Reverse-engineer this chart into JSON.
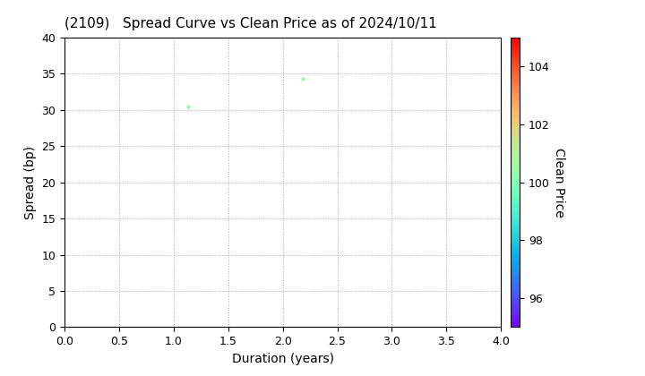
{
  "title": "(2109)   Spread Curve vs Clean Price as of 2024/10/11",
  "xlabel": "Duration (years)",
  "ylabel": "Spread (bp)",
  "colorbar_label": "Clean Price",
  "xlim": [
    0.0,
    4.0
  ],
  "ylim": [
    0,
    40
  ],
  "xticks": [
    0.0,
    0.5,
    1.0,
    1.5,
    2.0,
    2.5,
    3.0,
    3.5,
    4.0
  ],
  "yticks": [
    0,
    5,
    10,
    15,
    20,
    25,
    30,
    35,
    40
  ],
  "colorbar_min": 95,
  "colorbar_max": 105,
  "colorbar_ticks": [
    96,
    98,
    100,
    102,
    104
  ],
  "points": [
    {
      "duration": 1.13,
      "spread": 30.5,
      "clean_price": 100.2
    },
    {
      "duration": 2.18,
      "spread": 34.3,
      "clean_price": 100.3
    }
  ],
  "marker_size": 10,
  "grid_color": "#aaaaaa",
  "grid_style": "dotted",
  "background_color": "#ffffff",
  "title_fontsize": 11,
  "axis_fontsize": 10,
  "tick_fontsize": 9
}
